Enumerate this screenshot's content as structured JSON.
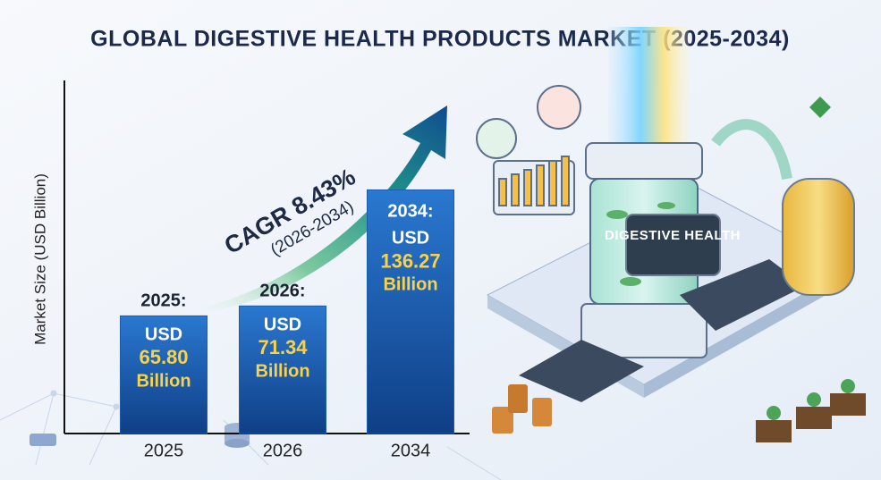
{
  "chart_data": {
    "type": "bar",
    "title": "GLOBAL DIGESTIVE HEALTH PRODUCTS MARKET (2025-2034)",
    "y_label": "Market Size (USD Billion)",
    "categories": [
      "2025",
      "2026",
      "2034"
    ],
    "values": [
      65.8,
      71.34,
      136.27
    ],
    "value_labels": [
      "65.80",
      "71.34",
      "136.27"
    ],
    "year_labels": [
      "2025:",
      "2026:",
      "2034:"
    ],
    "currency_label": "USD",
    "unit_label": "Billion",
    "color": "#1a5cb0",
    "ylim": [
      0,
      140
    ],
    "annotation": {
      "text": "CAGR 8.43%",
      "period": "(2026-2034)"
    }
  },
  "illustration": {
    "label": "DIGESTIVE HEALTH"
  }
}
